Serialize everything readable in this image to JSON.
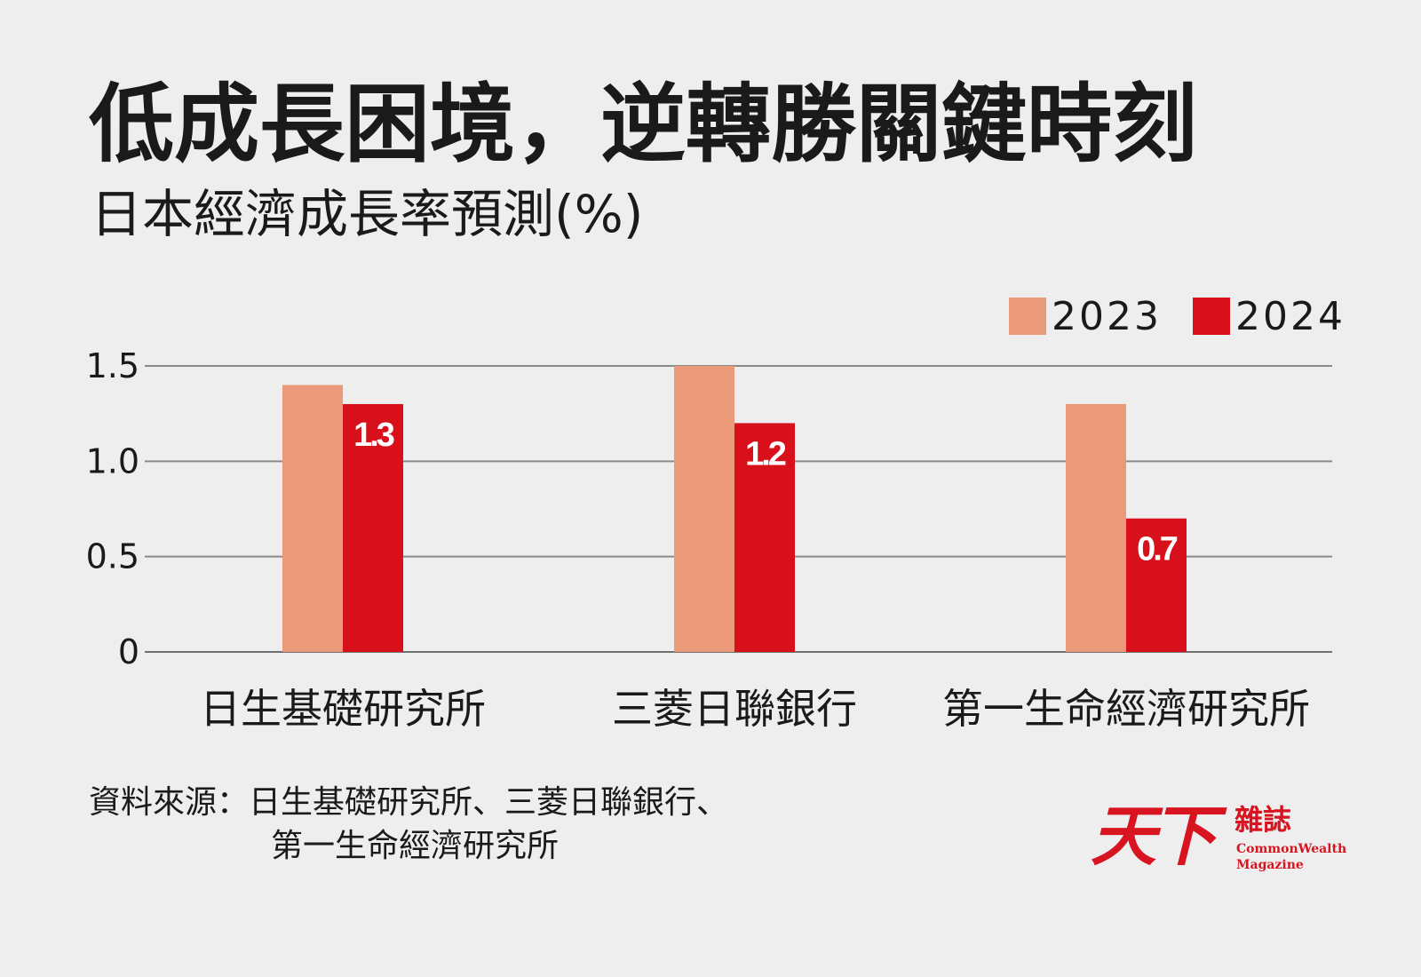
{
  "header": {
    "title": "低成長困境，逆轉勝關鍵時刻",
    "subtitle": "日本經濟成長率預測(%)"
  },
  "chart_data": {
    "type": "bar",
    "categories": [
      "日生基礎研究所",
      "三菱日聯銀行",
      "第一生命經濟研究所"
    ],
    "series": [
      {
        "name": "2023",
        "values": [
          1.4,
          1.5,
          1.3
        ],
        "color": "#ea9a78",
        "show_labels": false
      },
      {
        "name": "2024",
        "values": [
          1.3,
          1.2,
          0.7
        ],
        "color": "#d7101c",
        "show_labels": true
      }
    ],
    "data_labels_2024": [
      "1.3",
      "1.2",
      "0.7"
    ],
    "y_ticks": [
      "0",
      "0.5",
      "1.0",
      "1.5"
    ],
    "y_tick_values": [
      0,
      0.5,
      1.0,
      1.5
    ],
    "ylim": [
      0,
      1.5
    ],
    "grid": true,
    "legend_position": "top-right"
  },
  "footer": {
    "source_line1": "資料來源：日生基礎研究所、三菱日聯銀行、",
    "source_line2": "第一生命經濟研究所"
  },
  "logo": {
    "mark": "天下",
    "zazhi": "雜誌",
    "en_line1": "CommonWealth",
    "en_line2": "Magazine"
  },
  "colors": {
    "background": "#eeeeee",
    "bar_2023": "#ea9a78",
    "bar_2024": "#d7101c",
    "gridline": "#8a8a8a",
    "brand_red": "#d7141f"
  }
}
